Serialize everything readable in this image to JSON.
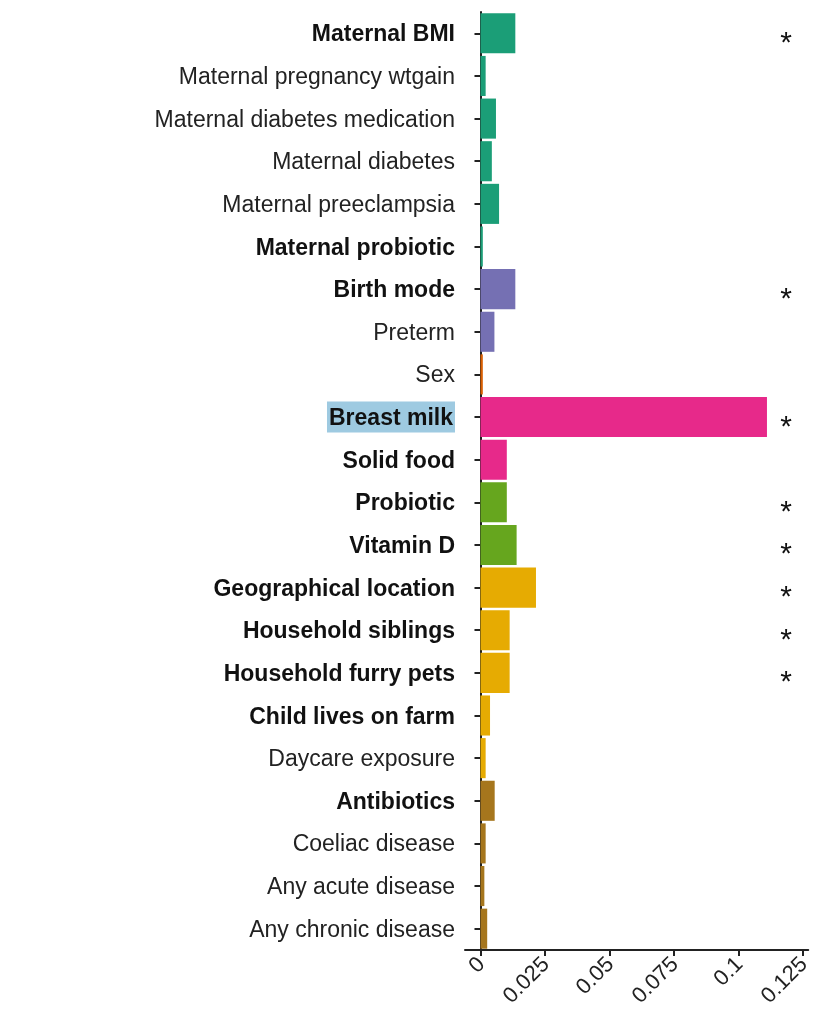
{
  "chart_data": {
    "type": "bar",
    "orientation": "horizontal",
    "categories": [
      "Maternal BMI",
      "Maternal pregnancy wtgain",
      "Maternal diabetes medication",
      "Maternal diabetes",
      "Maternal preeclampsia",
      "Maternal probiotic",
      "Birth mode",
      "Preterm",
      "Sex",
      "Breast milk",
      "Solid food",
      "Probiotic",
      "Vitamin D",
      "Geographical location",
      "Household siblings",
      "Household furry pets",
      "Child lives on farm",
      "Daycare exposure",
      "Antibiotics",
      "Coeliac disease",
      "Any acute disease",
      "Any chronic disease"
    ],
    "values": [
      0.0135,
      0.002,
      0.006,
      0.0044,
      0.0072,
      0.0009,
      0.0135,
      0.0054,
      0.0009,
      0.111,
      0.0102,
      0.0102,
      0.014,
      0.0215,
      0.0113,
      0.0113,
      0.0037,
      0.002,
      0.0055,
      0.002,
      0.0015,
      0.0026
    ],
    "colors": [
      "#1b9e77",
      "#1b9e77",
      "#1b9e77",
      "#1b9e77",
      "#1b9e77",
      "#1b9e77",
      "#7570b3",
      "#7570b3",
      "#d95f02",
      "#e7298a",
      "#e7298a",
      "#66a61e",
      "#66a61e",
      "#e6ab02",
      "#e6ab02",
      "#e6ab02",
      "#e6ab02",
      "#e6ab02",
      "#a6761d",
      "#a6761d",
      "#a6761d",
      "#a6761d"
    ],
    "value_labels": [
      "*",
      null,
      null,
      null,
      null,
      null,
      "*",
      null,
      null,
      "*",
      null,
      "*",
      "*",
      "*",
      "*",
      "*",
      null,
      null,
      null,
      null,
      null,
      null
    ],
    "xlim": [
      -0.006,
      0.127
    ],
    "xticks": [
      0,
      0.025,
      0.05,
      0.075,
      0.1,
      0.125
    ],
    "grid": false
  }
}
